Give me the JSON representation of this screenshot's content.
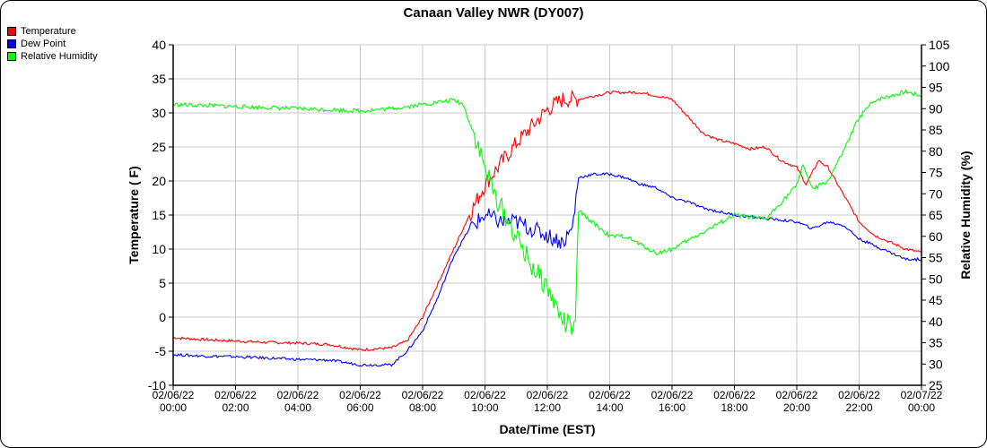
{
  "chart_data": {
    "type": "line",
    "title": "Canaan Valley NWR (DY007)",
    "xlabel": "Date/Time (EST)",
    "ylabel": "Temperature ( F)",
    "y2label": "Relative Humidity (%)",
    "xlim_hours": [
      0,
      24
    ],
    "ylim": [
      -10,
      40
    ],
    "y2lim": [
      25,
      105
    ],
    "grid": true,
    "legend_position": "top-left",
    "x_tick_labels": [
      [
        "02/06/22",
        "00:00"
      ],
      [
        "02/06/22",
        "02:00"
      ],
      [
        "02/06/22",
        "04:00"
      ],
      [
        "02/06/22",
        "06:00"
      ],
      [
        "02/06/22",
        "08:00"
      ],
      [
        "02/06/22",
        "10:00"
      ],
      [
        "02/06/22",
        "12:00"
      ],
      [
        "02/06/22",
        "14:00"
      ],
      [
        "02/06/22",
        "16:00"
      ],
      [
        "02/06/22",
        "18:00"
      ],
      [
        "02/06/22",
        "20:00"
      ],
      [
        "02/06/22",
        "22:00"
      ],
      [
        "02/07/22",
        "00:00"
      ]
    ],
    "y_ticks": [
      -10,
      -5,
      0,
      5,
      10,
      15,
      20,
      25,
      30,
      35,
      40
    ],
    "y2_ticks": [
      25,
      30,
      35,
      40,
      45,
      50,
      55,
      60,
      65,
      70,
      75,
      80,
      85,
      90,
      95,
      100,
      105
    ],
    "series": [
      {
        "name": "Temperature",
        "axis": "left",
        "color": "#ff0000",
        "x": [
          0,
          1,
          2,
          3,
          4,
          5,
          6,
          7,
          7.5,
          8,
          8.5,
          9,
          9.5,
          10,
          10.5,
          11,
          11.5,
          12,
          12.5,
          13,
          13.5,
          14,
          14.5,
          15,
          15.5,
          16,
          16.5,
          17,
          17.5,
          18,
          18.5,
          19,
          19.5,
          20,
          20.3,
          20.7,
          21,
          21.5,
          22,
          22.5,
          23,
          23.5,
          24
        ],
        "y": [
          -3,
          -3.3,
          -3.5,
          -3.7,
          -3.8,
          -4,
          -4.8,
          -4.5,
          -3.5,
          0,
          5,
          10,
          15,
          19.5,
          22.5,
          25.5,
          28,
          30.5,
          32,
          32,
          32.5,
          33,
          33,
          33,
          32.5,
          32,
          29.5,
          27,
          26,
          25.5,
          24.7,
          25,
          23,
          22,
          19.5,
          23,
          22,
          18,
          14,
          12,
          11,
          10,
          9.5
        ]
      },
      {
        "name": "Dew Point",
        "axis": "left",
        "color": "#0000ff",
        "x": [
          0,
          1,
          2,
          3,
          4,
          5,
          6,
          7,
          7.5,
          8,
          8.5,
          9,
          9.5,
          10,
          10.5,
          11,
          11.5,
          12,
          12.5,
          12.8,
          13,
          13.5,
          14,
          14.5,
          15,
          15.5,
          16,
          16.5,
          17,
          18,
          19,
          20,
          20.5,
          21,
          21.5,
          22,
          22.5,
          23,
          23.5,
          24
        ],
        "y": [
          -5.5,
          -5.7,
          -5.8,
          -6,
          -6.2,
          -6.3,
          -7,
          -7,
          -5,
          -2,
          3,
          9,
          13,
          15,
          14,
          14,
          13,
          12,
          11,
          13,
          20.5,
          21,
          21,
          20.5,
          19.5,
          19,
          17.5,
          17,
          16,
          15,
          14.5,
          14,
          13,
          14,
          13.5,
          11.5,
          10.5,
          9.5,
          8.5,
          8.5
        ]
      },
      {
        "name": "Relative Humidity",
        "axis": "right",
        "color": "#00ff00",
        "x": [
          0,
          2,
          4,
          6,
          7,
          8,
          8.5,
          9,
          9.3,
          9.7,
          10,
          10.3,
          10.5,
          11,
          11.5,
          12,
          12.5,
          12.9,
          13,
          13.5,
          14,
          14.5,
          15,
          15.5,
          16,
          16.5,
          17,
          17.5,
          18,
          19,
          19.5,
          20,
          20.2,
          20.5,
          21,
          21.5,
          22,
          22.5,
          23,
          23.5,
          24
        ],
        "y": [
          91,
          90.5,
          90,
          89.5,
          90,
          91,
          91.5,
          92,
          91,
          83,
          76,
          70,
          67,
          60,
          53,
          48,
          40,
          38,
          66,
          63,
          60,
          60,
          58,
          56,
          57,
          59,
          61,
          63,
          65,
          64,
          68,
          72,
          77,
          71,
          73,
          80,
          88,
          92,
          93,
          94,
          93
        ]
      }
    ]
  }
}
